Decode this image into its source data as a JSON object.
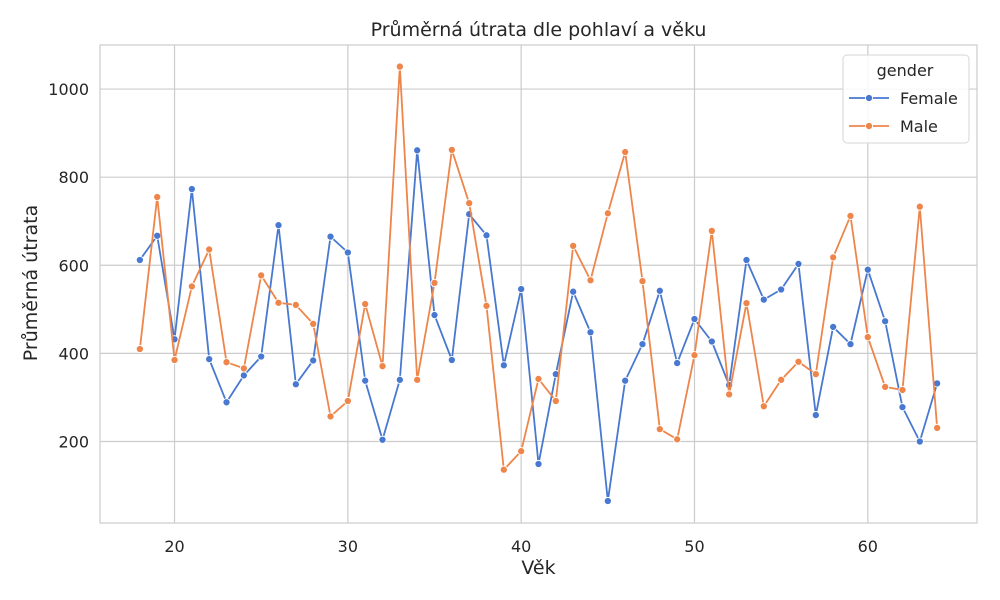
{
  "chart_data": {
    "type": "line",
    "title": "Průměrná útrata dle pohlaví a věku",
    "xlabel": "Věk",
    "ylabel": "Průměrná útrata",
    "xlim": [
      15.7,
      66.3
    ],
    "ylim": [
      15,
      1100
    ],
    "xticks": [
      20,
      30,
      40,
      50,
      60
    ],
    "yticks": [
      200,
      400,
      600,
      800,
      1000
    ],
    "grid": true,
    "legend": {
      "title": "gender",
      "placement": "top-right"
    },
    "series": [
      {
        "name": "Female",
        "color": "#4878d0",
        "x": [
          18,
          19,
          20,
          21,
          22,
          23,
          24,
          25,
          26,
          27,
          28,
          29,
          30,
          31,
          32,
          33,
          34,
          35,
          36,
          37,
          38,
          39,
          40,
          41,
          42,
          43,
          44,
          45,
          46,
          47,
          48,
          49,
          50,
          51,
          52,
          53,
          54,
          55,
          56,
          57,
          58,
          59,
          60,
          61,
          62,
          63,
          64
        ],
        "y": [
          612,
          667,
          432,
          773,
          387,
          289,
          350,
          393,
          691,
          330,
          384,
          665,
          629,
          338,
          204,
          340,
          861,
          487,
          385,
          716,
          668,
          373,
          546,
          149,
          353,
          540,
          448,
          65,
          338,
          421,
          542,
          378,
          478,
          427,
          328,
          612,
          522,
          545,
          603,
          260,
          460,
          421,
          590,
          473,
          278,
          200,
          332
        ]
      },
      {
        "name": "Male",
        "color": "#ee854a",
        "x": [
          18,
          19,
          20,
          21,
          22,
          23,
          24,
          25,
          26,
          27,
          28,
          29,
          30,
          31,
          32,
          33,
          34,
          35,
          36,
          37,
          38,
          39,
          40,
          41,
          42,
          43,
          44,
          45,
          46,
          47,
          48,
          49,
          50,
          51,
          52,
          53,
          54,
          55,
          56,
          57,
          58,
          59,
          60,
          61,
          62,
          63,
          64
        ],
        "y": [
          410,
          755,
          385,
          552,
          636,
          380,
          366,
          577,
          515,
          510,
          467,
          257,
          292,
          512,
          371,
          1051,
          340,
          560,
          862,
          741,
          508,
          136,
          178,
          342,
          292,
          644,
          566,
          718,
          857,
          564,
          228,
          205,
          396,
          678,
          307,
          514,
          280,
          340,
          381,
          353,
          618,
          712,
          437,
          324,
          317,
          733,
          231
        ]
      }
    ]
  }
}
